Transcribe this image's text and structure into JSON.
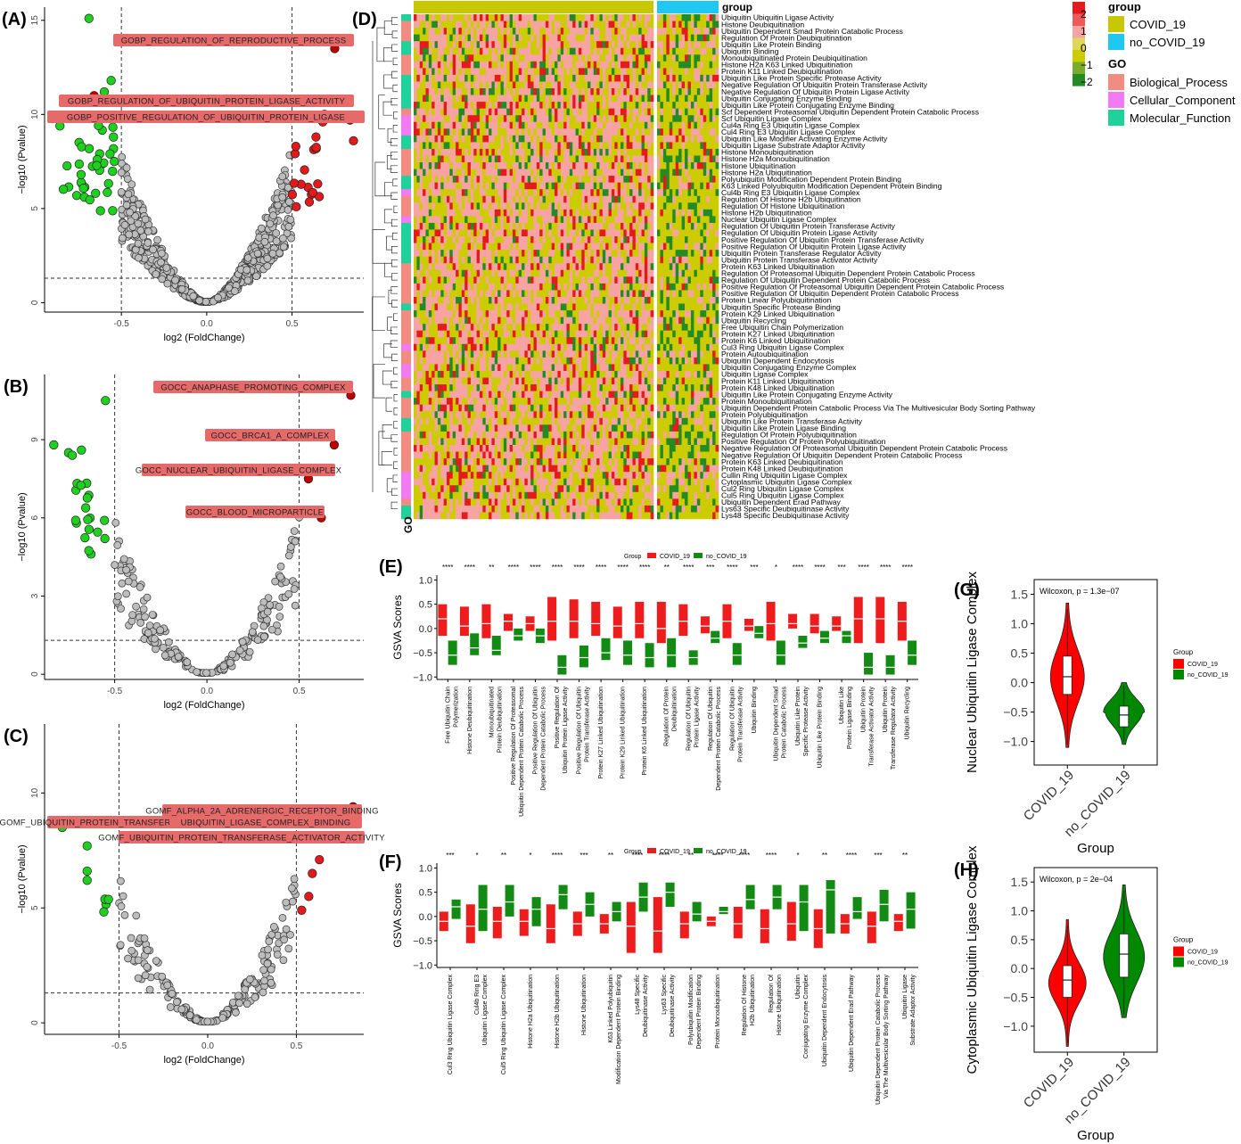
{
  "panels": {
    "A": "(A)",
    "B": "(B)",
    "C": "(C)",
    "D": "(D)",
    "E": "(E)",
    "F": "(F)",
    "G": "(G)",
    "H": "(H)"
  },
  "colors": {
    "red": "#e31a1c",
    "green": "#1fd11f",
    "grey": "#bdbdbd",
    "box_red": "#ee1c1c",
    "box_green": "#138a13",
    "hm_red": "#e41a1c",
    "hm_pink": "#f7a3a3",
    "hm_olive": "#cccc00",
    "hm_green": "#238b23",
    "covid": "#c8c800",
    "nocovid": "#1ec8f0",
    "bp": "#f28b82",
    "cc": "#f27af2",
    "mf": "#1fd19a"
  },
  "chart_data": [
    {
      "panel": "A",
      "type": "scatter",
      "xlabel": "log2 (FoldChange)",
      "ylabel": "−log10 (Pvalue)",
      "xticks": [
        "-0.5",
        "0.0",
        "0.5"
      ],
      "yticks": [
        "0",
        "5",
        "10",
        "15"
      ],
      "xlim": [
        -0.95,
        0.92
      ],
      "ylim": [
        -0.5,
        15.7
      ],
      "thresholds": {
        "x": [
          -0.5,
          0.5
        ],
        "y": 1.3
      },
      "annotations": [
        "GOBP_REGULATION_OF_REPRODUCTIVE_PROCESS",
        "GOBP_REGULATION_OF_UBIQUITIN_PROTEIN_LIGASE_ACTIVITY",
        "GOBP_POSITIVE_REGULATION_OF_UBIQUITIN_PROTEIN_LIGASE"
      ],
      "highlight_points": [
        [
          0.75,
          13.5
        ],
        [
          -0.66,
          11.0
        ],
        [
          0.69,
          10.0
        ],
        [
          0.84,
          9.7
        ]
      ]
    },
    {
      "panel": "B",
      "type": "scatter",
      "xlabel": "log2 (FoldChange)",
      "ylabel": "−log10 (Pvalue)",
      "xticks": [
        "-0.5",
        "0.0",
        "0.5"
      ],
      "yticks": [
        "0",
        "3",
        "6",
        "9"
      ],
      "xlim": [
        -0.88,
        0.85
      ],
      "ylim": [
        -0.2,
        11.5
      ],
      "thresholds": {
        "x": [
          -0.5,
          0.5
        ],
        "y": 1.3
      },
      "annotations": [
        "GOCC_ANAPHASE_PROMOTING_COMPLEX",
        "GOCC_BRCA1_A_COMPLEX",
        "GOCC_NUCLEAR_UBIQUITIN_LIGASE_COMPLEX",
        "GOCC_BLOOD_MICROPARTICLE"
      ],
      "highlight_points": [
        [
          0.78,
          10.7
        ],
        [
          0.69,
          8.8
        ],
        [
          0.55,
          7.5
        ],
        [
          0.62,
          6.0
        ]
      ]
    },
    {
      "panel": "C",
      "type": "scatter",
      "xlabel": "log2 (FoldChange)",
      "ylabel": "−log10 (Pvalue)",
      "xticks": [
        "-0.5",
        "0.0",
        "0.5"
      ],
      "yticks": [
        "0",
        "5",
        "10"
      ],
      "xlim": [
        -0.92,
        0.88
      ],
      "ylim": [
        -0.5,
        13.0
      ],
      "thresholds": {
        "x": [
          -0.5,
          0.5
        ],
        "y": 1.3
      },
      "annotations": [
        "GOMF_ALPHA_2A_ADRENERGIC_RECEPTOR_BINDING",
        "GOMF_UBIQUITIN_PROTEIN_TRANSFERASE_REGULATOR_ACTIVITY",
        "UBIQUITIN_LIGASE_COMPLEX_BINDING",
        "GOMF_UBIQUITIN_PROTEIN_TRANSFERASE_ACTIVATOR_ACTIVITY"
      ],
      "highlight_points": [
        [
          0.82,
          9.4
        ],
        [
          0.66,
          8.9
        ]
      ]
    },
    {
      "panel": "D",
      "type": "heatmap",
      "legend_title_group": "group",
      "groups": [
        "COVID_19",
        "no_COVID_19"
      ],
      "legend_title_go": "GO",
      "go_categories": [
        "Biological_Process",
        "Cellular_Component",
        "Molecular_Function"
      ],
      "scale": [
        "2",
        "1",
        "0",
        "−1",
        "−2"
      ],
      "row_axis_label": "GO",
      "rows": [
        "Ubiquitin Ubiquitin Ligase Activity",
        "Histone Deubiquitination",
        "Ubiquitin Dependent Smad Protein Catabolic Process",
        "Regulation Of Protein Deubiquitination",
        "Ubiquitin Like Protein Binding",
        "Ubiquitin Binding",
        "Monoubiquitinated Protein Deubiquitination",
        "Histone H2a K63 Linked Ubiquitination",
        "Protein K11 Linked Deubiquitination",
        "Ubiquitin Like Protein Specific Protease Activity",
        "Negative Regulation Of Ubiquitin Protein Transferase Activity",
        "Negative Regulation Of Ubiquitin Protein Ligase Activity",
        "Ubiquitin Conjugating Enzyme Binding",
        "Ubiquitin Like Protein Conjugating Enzyme Binding",
        "Scf Dependent Proteasomal Ubiquitin Dependent Protein Catabolic Process",
        "Scf Ubiquitin Ligase Complex",
        "Cul4a Ring E3 Ubiquitin Ligase Complex",
        "Cul4 Ring E3 Ubiquitin Ligase Complex",
        "Ubiquitin Like Modifier Activating Enzyme Activity",
        "Ubiquitin Ligase Substrate Adaptor Activity",
        "Histone Monoubiquitination",
        "Histone H2a Monoubiquitination",
        "Histone Ubiquitination",
        "Histone H2a Ubiquitination",
        "Polyubiquitin Modification Dependent Protein Binding",
        "K63 Linked Polyubiquitin Modification Dependent Protein Binding",
        "Cul4b Ring E3 Ubiquitin Ligase Complex",
        "Regulation Of Histone H2b Ubiquitination",
        "Regulation Of Histone Ubiquitination",
        "Histone H2b Ubiquitination",
        "Nuclear Ubiquitin Ligase Complex",
        "Regulation Of Ubiquitin Protein Transferase Activity",
        "Regulation Of Ubiquitin Protein Ligase Activity",
        "Positive Regulation Of Ubiquitin Protein Transferase Activity",
        "Positive Regulation Of Ubiquitin Protein Ligase Activity",
        "Ubiquitin Protein Transferase Regulator Activity",
        "Ubiquitin Protein Transferase Activator Activity",
        "Protein K63 Linked Ubiquitination",
        "Regulation Of Proteasomal Ubiquitin Dependent Protein Catabolic Process",
        "Regulation Of Ubiquitin Dependent Protein Catabolic Process",
        "Positive Regulation Of Proteasomal Ubiquitin Dependent Protein Catabolic Process",
        "Positive Regulation Of Ubiquitin Dependent Protein Catabolic Process",
        "Protein Linear Polyubiquitination",
        "Ubiquitin Specific Protease Binding",
        "Protein K29 Linked Ubiquitination",
        "Ubiquitin Recycling",
        "Free Ubiquitin Chain Polymerization",
        "Protein K27 Linked Ubiquitination",
        "Protein K6 Linked Ubiquitination",
        "Cul3 Ring Ubiquitin Ligase Complex",
        "Protein Autoubiquitination",
        "Ubiquitin Dependent Endocytosis",
        "Ubiquitin Conjugating Enzyme Complex",
        "Ubiquitin Ligase Complex",
        "Protein K11 Linked Ubiquitination",
        "Protein K48 Linked Ubiquitination",
        "Ubiquitin Like Protein Conjugating Enzyme Activity",
        "Protein Monoubiquitination",
        "Ubiquitin Dependent Protein Catabolic Process Via The Multivesicular Body Sorting Pathway",
        "Protein Polyubiquitination",
        "Ubiquitin Like Protein Transferase Activity",
        "Ubiquitin Like Protein Ligase Binding",
        "Regulation Of Protein Polyubiquitination",
        "Positive Regulation Of Protein Polyubiquitination",
        "Negative Regulation Of Proteasomal Ubiquitin Dependent Protein Catabolic Process",
        "Negative Regulation Of Ubiquitin Dependent Protein Catabolic Process",
        "Protein K63 Linked Deubiquitination",
        "Protein K48 Linked Deubiquitination",
        "Cullin Ring Ubiquitin Ligase Complex",
        "Cytoplasmic Ubiquitin Ligase Complex",
        "Cul2 Ring Ubiquitin Ligase Complex",
        "Cul5 Ring Ubiquitin Ligase Complex",
        "Ubiquitin Dependent Erad Pathway",
        "Lys63 Specific Deubiquitinase Activity",
        "Lys48 Specific Deubiquitinase Activity"
      ]
    },
    {
      "panel": "E",
      "type": "box",
      "legend_title": "Group",
      "legend": [
        "COVID_19",
        "no_COVID_19"
      ],
      "ylabel": "GSVA Scores",
      "yticks": [
        "1.0",
        "0.5",
        "0.0",
        "−0.5",
        "−1.0"
      ],
      "ylim": [
        -1.05,
        1.1
      ],
      "categories": [
        "Free Ubiquitin Chain Polymerization",
        "Histone Deubiquitination",
        "Monoubiquitinated Protein Deubiquitination",
        "Positive Regulation Of Proteasomal Ubiquitin Dependent Protein Catabolic Process",
        "Positive Regulation Of Ubiquitin Dependent Protein Catabolic Process",
        "Positive Regulation Of Ubiquitin Protein Ligase Activity",
        "Positive Regulation Of Ubiquitin Protein Transferase Activity",
        "Protein K27 Linked Ubiquitination",
        "Protein K29 Linked Ubiquitination",
        "Protein K6 Linked Ubiquitination",
        "Regulation Of Protein Deubiquitination",
        "Regulation Of Ubiquitin Protein Ligase Activity",
        "Regulation Of Ubiquitin Dependent Protein Catabolic Process",
        "Regulation Of Ubiquitin Protein Transferase Activity",
        "Ubiquitin Binding",
        "Ubiquitin Dependent Smad Protein Catabolic Process",
        "Ubiquitin Like Protein Specific Protease Activity",
        "Ubiquitin Like Protein Binding",
        "Ubiquitin Like Protein Ligase Binding",
        "Ubiquitin Protein Transferase Activator Activity",
        "Ubiquitin Protein Transferase Regulator Activity",
        "Ubiquitin Recycling"
      ],
      "significance": [
        "****",
        "****",
        "**",
        "****",
        "****",
        "****",
        "****",
        "****",
        "****",
        "****",
        "**",
        "****",
        "***",
        "****",
        "***",
        "*",
        "****",
        "****",
        "***",
        "****",
        "****",
        "****"
      ],
      "series": [
        {
          "name": "COVID_19",
          "q1": [
            -0.15,
            -0.15,
            -0.2,
            -0.05,
            -0.05,
            -0.25,
            -0.2,
            -0.15,
            -0.2,
            -0.2,
            -0.3,
            -0.15,
            -0.1,
            -0.2,
            -0.05,
            -0.25,
            0,
            -0.1,
            -0.05,
            -0.3,
            -0.3,
            -0.25
          ],
          "med": [
            0.2,
            0.05,
            0.1,
            0.15,
            0.1,
            0.15,
            0.15,
            0.1,
            0.05,
            0.1,
            0,
            0.15,
            0.05,
            0.15,
            0.05,
            0.1,
            0.1,
            0.05,
            0.05,
            0.2,
            0.2,
            0.15
          ],
          "q3": [
            0.5,
            0.45,
            0.5,
            0.3,
            0.25,
            0.65,
            0.6,
            0.55,
            0.45,
            0.55,
            0.55,
            0.5,
            0.25,
            0.5,
            0.2,
            0.55,
            0.3,
            0.3,
            0.25,
            0.65,
            0.65,
            0.55
          ]
        },
        {
          "name": "no_COVID_19",
          "q1": [
            -0.75,
            -0.55,
            -0.55,
            -0.25,
            -0.3,
            -0.95,
            -0.8,
            -0.65,
            -0.75,
            -0.8,
            -0.8,
            -0.75,
            -0.3,
            -0.75,
            -0.2,
            -0.75,
            -0.4,
            -0.3,
            -0.3,
            -0.95,
            -0.95,
            -0.75
          ],
          "med": [
            -0.55,
            -0.4,
            -0.45,
            -0.15,
            -0.15,
            -0.8,
            -0.6,
            -0.5,
            -0.55,
            -0.6,
            -0.55,
            -0.6,
            -0.2,
            -0.55,
            -0.1,
            -0.55,
            -0.3,
            -0.2,
            -0.15,
            -0.8,
            -0.8,
            -0.55
          ],
          "q3": [
            -0.25,
            -0.1,
            -0.15,
            0,
            0,
            -0.55,
            -0.35,
            -0.2,
            -0.25,
            -0.3,
            -0.2,
            -0.45,
            -0.05,
            -0.3,
            0.05,
            -0.25,
            -0.15,
            -0.05,
            -0.05,
            -0.5,
            -0.55,
            -0.25
          ]
        }
      ]
    },
    {
      "panel": "F",
      "type": "box",
      "legend_title": "Group",
      "legend": [
        "COVID_19",
        "no_COVID_19"
      ],
      "ylabel": "GSVA Scores",
      "yticks": [
        "1.0",
        "0.5",
        "0.0",
        "−0.5",
        "−1.0"
      ],
      "ylim": [
        -1.05,
        1.1
      ],
      "categories": [
        "Cul3 Ring Ubiquitin Ligase Complex",
        "Cul4b Ring E3 Ubiquitin Ligase Complex",
        "Cul5 Ring Ubiquitin Ligase Complex",
        "Histone H2a Ubiquitination",
        "Histone H2b Ubiquitination",
        "Histone Ubiquitination",
        "K63 Linked Polyubiquitin Modification Dependent Protein Binding",
        "Lys48 Specific Deubiquitinase Activity",
        "Lys63 Specific Deubiquitinase Activity",
        "Polyubiquitin Modification Dependent Protein Binding",
        "Protein Monoubiquitination",
        "Regulation Of Histone H2b Ubiquitination",
        "Regulation Of Histone Ubiquitination",
        "Ubiquitin Conjugating Enzyme Complex",
        "Ubiquitin Dependent Endocytosis",
        "Ubiquitin Dependent Erad Pathway",
        "Ubiquitin Dependent Protein Catabolic Process Via The Multivesicular Body Sorting Pathway",
        "Ubiquitin Ligase Substrate Adaptor Activity"
      ],
      "significance": [
        "***",
        "*",
        "**",
        "*",
        "****",
        "***",
        "**",
        "****",
        "****",
        "**",
        "****",
        "****",
        "****",
        "*",
        "**",
        "****",
        "***",
        "**"
      ],
      "series": [
        {
          "name": "COVID_19",
          "q1": [
            -0.3,
            -0.55,
            -0.45,
            -0.4,
            -0.55,
            -0.4,
            -0.35,
            -0.75,
            -0.75,
            -0.45,
            -0.2,
            -0.45,
            -0.55,
            -0.5,
            -0.65,
            -0.35,
            -0.55,
            -0.3
          ],
          "med": [
            -0.1,
            -0.2,
            -0.1,
            -0.1,
            -0.25,
            -0.15,
            -0.15,
            -0.2,
            -0.3,
            -0.15,
            -0.1,
            -0.15,
            -0.25,
            -0.15,
            -0.25,
            -0.15,
            -0.2,
            -0.1
          ],
          "q3": [
            0.1,
            0.25,
            0.2,
            0.15,
            0.25,
            0.1,
            0.05,
            0.3,
            0.4,
            0.1,
            0,
            0.2,
            0.15,
            0.3,
            0.15,
            0.05,
            0.1,
            0.05
          ]
        },
        {
          "name": "no_COVID_19",
          "q1": [
            -0.05,
            -0.3,
            0,
            -0.2,
            0.15,
            0,
            -0.1,
            0.1,
            0.2,
            -0.1,
            0.05,
            0.15,
            0.15,
            -0.3,
            -0.35,
            -0.05,
            -0.1,
            -0.25
          ],
          "med": [
            0.2,
            0.15,
            0.3,
            0.15,
            0.45,
            0.25,
            0.1,
            0.4,
            0.5,
            0.05,
            0.1,
            0.35,
            0.4,
            0.3,
            0.55,
            0.1,
            0.25,
            0.15
          ],
          "q3": [
            0.35,
            0.65,
            0.65,
            0.4,
            0.65,
            0.5,
            0.3,
            0.7,
            0.7,
            0.3,
            0.2,
            0.65,
            0.65,
            0.65,
            0.75,
            0.4,
            0.55,
            0.5
          ]
        }
      ]
    },
    {
      "panel": "G",
      "type": "violin",
      "annotation": "Wilcoxon, p = 1.3e−07",
      "xlabel": "Group",
      "ylabel": "Nuclear Ubiquitin Ligase Complex",
      "categories": [
        "COVID_19",
        "no_COVID_19"
      ],
      "legend_title": "Group",
      "legend": [
        "COVID_19",
        "no_COVID_19"
      ],
      "yticks": [
        "1.5",
        "1.0",
        "0.5",
        "0.0",
        "−0.5",
        "−1.0"
      ],
      "ylim": [
        -1.4,
        1.75
      ],
      "box": [
        {
          "q1": -0.2,
          "med": 0.1,
          "q3": 0.45,
          "lo": -1.05,
          "hi": 1.25
        },
        {
          "q1": -0.75,
          "med": -0.55,
          "q3": -0.4,
          "lo": -1.0,
          "hi": -0.05
        }
      ]
    },
    {
      "panel": "H",
      "type": "violin",
      "annotation": "Wilcoxon, p = 2e−04",
      "xlabel": "Group",
      "ylabel": "Cytoplasmic Ubiquitin Ligase Complex",
      "categories": [
        "COVID_19",
        "no_COVID_19"
      ],
      "legend_title": "Group",
      "legend": [
        "COVID_19",
        "no_COVID_19"
      ],
      "yticks": [
        "1.5",
        "1.0",
        "0.5",
        "0.0",
        "−0.5",
        "−1.0"
      ],
      "ylim": [
        -1.45,
        1.75
      ],
      "box": [
        {
          "q1": -0.5,
          "med": -0.2,
          "q3": 0.05,
          "lo": -1.3,
          "hi": 0.75
        },
        {
          "q1": -0.15,
          "med": 0.25,
          "q3": 0.6,
          "lo": -0.8,
          "hi": 1.35
        }
      ]
    }
  ]
}
